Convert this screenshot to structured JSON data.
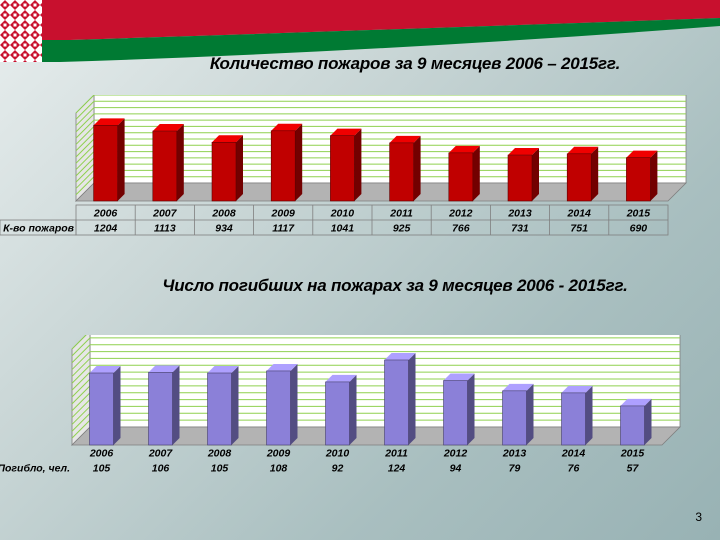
{
  "colors": {
    "fires_bar": "#c00000",
    "deaths_bar": "#8b80d8",
    "flag_red": "#c8102e",
    "flag_green": "#007a33"
  },
  "chart_data": [
    {
      "type": "bar",
      "title": "Количество пожаров  за  9 месяцев 2006 – 2015гг.",
      "row_label": "К-во пожаров",
      "categories": [
        "2006",
        "2007",
        "2008",
        "2009",
        "2010",
        "2011",
        "2012",
        "2013",
        "2014",
        "2015"
      ],
      "values": [
        1204,
        1113,
        934,
        1117,
        1041,
        925,
        766,
        731,
        751,
        690
      ],
      "ylim": [
        0,
        1400
      ],
      "grid": true,
      "legend": "none"
    },
    {
      "type": "bar",
      "title": "Число погибших на пожарах за 9 месяцев  2006 - 2015гг.",
      "row_label": "Погибло, чел.",
      "categories": [
        "2006",
        "2007",
        "2008",
        "2009",
        "2010",
        "2011",
        "2012",
        "2013",
        "2014",
        "2015"
      ],
      "values": [
        105,
        106,
        105,
        108,
        92,
        124,
        94,
        79,
        76,
        57
      ],
      "ylim": [
        0,
        140
      ],
      "grid": true,
      "legend": "none"
    }
  ],
  "slide_number": "3"
}
